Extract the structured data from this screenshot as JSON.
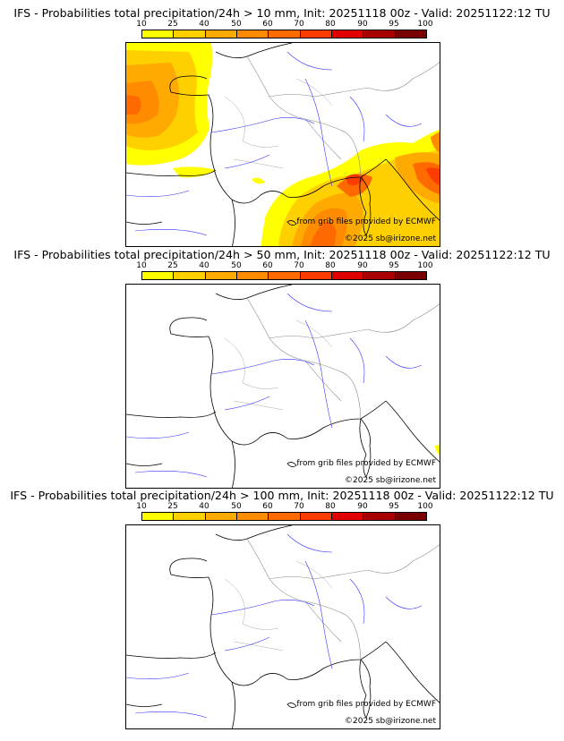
{
  "colorbar": {
    "ticks": [
      "10",
      "25",
      "40",
      "50",
      "60",
      "70",
      "80",
      "90",
      "95",
      "100"
    ],
    "colors": [
      "#ffff00",
      "#ffd000",
      "#ffaa00",
      "#ff8c00",
      "#ff6a00",
      "#ff3c00",
      "#e00000",
      "#a80000",
      "#780000"
    ]
  },
  "panels": [
    {
      "title": "IFS - Probabilities total precipitation/24h > 10 mm, Init: 20251118 00z - Valid: 20251122:12 TU",
      "credit_grib": "from grib files provided by ECMWF",
      "credit_copyright": "©2025 sb@irizone.net"
    },
    {
      "title": "IFS - Probabilities total precipitation/24h > 50 mm, Init: 20251118 00z - Valid: 20251122:12 TU",
      "credit_grib": "from grib files provided by ECMWF",
      "credit_copyright": "©2025 sb@irizone.net"
    },
    {
      "title": "IFS - Probabilities total precipitation/24h > 100 mm, Init: 20251118 00z - Valid: 20251122:12 TU",
      "credit_grib": "from grib files provided by ECMWF",
      "credit_copyright": "©2025 sb@irizone.net"
    }
  ]
}
